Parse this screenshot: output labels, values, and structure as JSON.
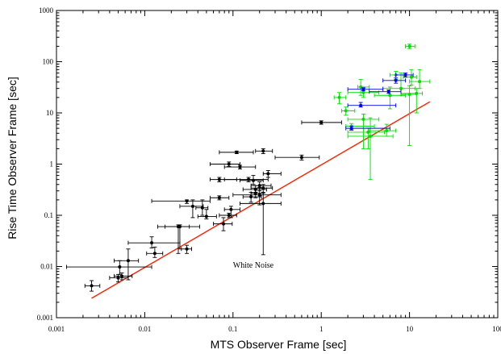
{
  "chart_data": {
    "type": "scatter",
    "xscale": "log",
    "yscale": "log",
    "xlim": [
      0.001,
      100
    ],
    "ylim": [
      0.001,
      1000
    ],
    "xlabel": "MTS Observer Frame [sec]",
    "ylabel": "Rise Time Observer Frame [sec]",
    "x_ticks": [
      0.001,
      0.01,
      0.1,
      1,
      10,
      100
    ],
    "x_tick_labels": [
      "0.001",
      "0.01",
      "0.1",
      "1",
      "10",
      "100"
    ],
    "y_ticks": [
      0.001,
      0.01,
      0.1,
      1,
      10,
      100,
      1000
    ],
    "y_tick_labels": [
      "0.001",
      "0.01",
      "0.1",
      "1",
      "10",
      "100",
      "1000"
    ],
    "grid": false,
    "annotations": [
      {
        "text": "White Noise",
        "x": 0.1,
        "y": 0.0095
      }
    ],
    "colors": {
      "black": "#000000",
      "green": "#00dd00",
      "blue": "#0000ee",
      "fit": "#ff2200"
    },
    "fit_line": {
      "x": [
        0.0025,
        17
      ],
      "y": [
        0.0024,
        16.5
      ],
      "color": "#ff2200"
    },
    "series": [
      {
        "color": "#000000",
        "points": [
          [
            0.0025,
            0.0042,
            0.0021,
            0.0031,
            0.0033,
            0.0053
          ],
          [
            0.005,
            0.006,
            0.004,
            0.0065,
            0.005,
            0.007
          ],
          [
            0.0055,
            0.0065,
            0.0045,
            0.0072,
            0.0055,
            0.0075
          ],
          [
            0.0052,
            0.0098,
            0.0013,
            0.012,
            0.007,
            0.013
          ],
          [
            0.0065,
            0.013,
            0.0045,
            0.0085,
            0.0055,
            0.022
          ],
          [
            0.012,
            0.029,
            0.0065,
            0.025,
            0.023,
            0.038
          ],
          [
            0.013,
            0.018,
            0.0105,
            0.016,
            0.015,
            0.024
          ],
          [
            0.03,
            0.022,
            0.026,
            0.034,
            0.018,
            0.026
          ],
          [
            0.024,
            0.06,
            0.017,
            0.032,
            0.018,
            0.065
          ],
          [
            0.025,
            0.06,
            0.014,
            0.042,
            0.022,
            0.065
          ],
          [
            0.03,
            0.19,
            0.012,
            0.055,
            0.17,
            0.2
          ],
          [
            0.035,
            0.15,
            0.025,
            0.046,
            0.09,
            0.2
          ],
          [
            0.045,
            0.14,
            0.038,
            0.052,
            0.1,
            0.2
          ],
          [
            0.05,
            0.095,
            0.04,
            0.065,
            0.085,
            0.13
          ],
          [
            0.07,
            0.22,
            0.055,
            0.09,
            0.2,
            0.24
          ],
          [
            0.078,
            0.068,
            0.06,
            0.098,
            0.05,
            0.09
          ],
          [
            0.09,
            0.1,
            0.07,
            0.11,
            0.09,
            0.11
          ],
          [
            0.095,
            0.13,
            0.08,
            0.12,
            0.09,
            0.15
          ],
          [
            0.07,
            0.5,
            0.055,
            0.11,
            0.45,
            0.55
          ],
          [
            0.09,
            1.0,
            0.055,
            0.12,
            0.9,
            1.1
          ],
          [
            0.11,
            1.7,
            0.07,
            0.17,
            1.6,
            1.8
          ],
          [
            0.12,
            0.88,
            0.08,
            0.18,
            0.8,
            0.95
          ],
          [
            0.15,
            0.5,
            0.08,
            0.25,
            0.45,
            0.55
          ],
          [
            0.17,
            0.48,
            0.12,
            0.22,
            0.4,
            0.6
          ],
          [
            0.16,
            0.23,
            0.13,
            0.21,
            0.18,
            0.28
          ],
          [
            0.18,
            0.32,
            0.13,
            0.24,
            0.28,
            0.38
          ],
          [
            0.2,
            0.38,
            0.16,
            0.27,
            0.3,
            0.45
          ],
          [
            0.22,
            0.34,
            0.16,
            0.28,
            0.28,
            0.4
          ],
          [
            0.18,
            0.27,
            0.16,
            0.22,
            0.22,
            0.32
          ],
          [
            0.22,
            1.8,
            0.18,
            0.28,
            1.6,
            2.0
          ],
          [
            0.2,
            0.25,
            0.1,
            0.35,
            0.16,
            0.35
          ],
          [
            0.22,
            0.17,
            0.12,
            0.35,
            0.017,
            0.27
          ],
          [
            0.25,
            0.65,
            0.22,
            0.35,
            0.55,
            0.75
          ],
          [
            0.6,
            1.35,
            0.3,
            0.95,
            1.2,
            1.5
          ],
          [
            1.0,
            6.5,
            0.6,
            1.7,
            6.0,
            7.0
          ]
        ]
      },
      {
        "color": "#00dd00",
        "points": [
          [
            1.6,
            20,
            1.4,
            1.9,
            15,
            25
          ],
          [
            1.9,
            11,
            1.7,
            2.4,
            9,
            13
          ],
          [
            2.2,
            5.5,
            1.9,
            4.0,
            4.8,
            6.2
          ],
          [
            2.8,
            32,
            2.6,
            3.5,
            22,
            45
          ],
          [
            3.0,
            25,
            2.0,
            4.5,
            20,
            30
          ],
          [
            3.0,
            7.5,
            2.0,
            4.5,
            2.0,
            9.5
          ],
          [
            3.4,
            4.2,
            2.0,
            5.2,
            2.0,
            5.0
          ],
          [
            3.6,
            3.5,
            2.0,
            6.5,
            0.5,
            8.0
          ],
          [
            5.5,
            4.5,
            3.5,
            7.0,
            3.5,
            6.0
          ],
          [
            6.0,
            22,
            4.0,
            9.0,
            12,
            32
          ],
          [
            7.0,
            55,
            6.0,
            8.5,
            45,
            65
          ],
          [
            8.0,
            30,
            5.0,
            11.5,
            22,
            60
          ],
          [
            10.0,
            23,
            8.0,
            12.0,
            2.3,
            34
          ],
          [
            10.5,
            50,
            8.5,
            12.0,
            35,
            70
          ],
          [
            10.0,
            200,
            9.0,
            11.5,
            180,
            220
          ],
          [
            12.0,
            24,
            8.0,
            14.0,
            10,
            30
          ],
          [
            13.0,
            41,
            10.0,
            17.0,
            30,
            70
          ]
        ]
      },
      {
        "color": "#0000ee",
        "points": [
          [
            2.2,
            5.0,
            1.9,
            6.0,
            4.6,
            5.5
          ],
          [
            2.8,
            14,
            2.0,
            7.0,
            13,
            16
          ],
          [
            3.0,
            29,
            2.0,
            5.0,
            27,
            31
          ],
          [
            5.8,
            26,
            3.5,
            8.0,
            24,
            28
          ],
          [
            7.0,
            43,
            5.0,
            9.0,
            38,
            48
          ],
          [
            9.0,
            55,
            7.0,
            11.0,
            50,
            60
          ]
        ]
      }
    ]
  }
}
